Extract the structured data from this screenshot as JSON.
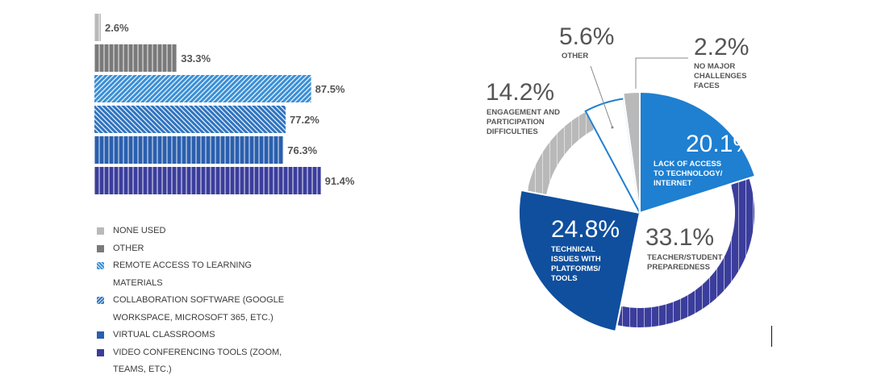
{
  "chart_data": [
    {
      "type": "bar",
      "orientation": "horizontal",
      "title": "",
      "xlabel": "",
      "ylabel": "",
      "xlim": [
        0,
        100
      ],
      "categories": [
        "NONE USED",
        "OTHER",
        "REMOTE ACCESS TO LEARNING MATERIALS",
        "COLLABORATION SOFTWARE (GOOGLE WORKSPACE,  MICROSOFT 365, ETC.)",
        "VIRTUAL CLASSROOMS",
        "VIDEO CONFERENCING TOOLS (ZOOM, TEAMS, ETC.)"
      ],
      "values": [
        2.6,
        33.3,
        87.5,
        77.2,
        76.3,
        91.4
      ],
      "value_labels": [
        "2.6%",
        "33.3%",
        "87.5%",
        "77.2%",
        "76.3%",
        "91.4%"
      ],
      "colors": [
        "#b9b9b9",
        "#7a7a7a",
        "#3a8fd6",
        "#2f74c0",
        "#2a5fae",
        "#3b3d9c"
      ],
      "patterns": [
        "vlines",
        "vlines",
        "diag-up",
        "diag-down",
        "vlines",
        "vlines"
      ],
      "legend_placement": "bottom-left"
    },
    {
      "type": "pie",
      "style": "donut",
      "slices": [
        {
          "label": "LACK OF ACCESS TO TECHNOLOGY/ INTERNET",
          "value": 20.1,
          "value_label": "20.1%",
          "color": "#1f7fd0",
          "ring": "outer"
        },
        {
          "label": "TEACHER/STUDENT PREPAREDNESS",
          "value": 33.1,
          "value_label": "33.1%",
          "color": "#3b3d9c",
          "ring": "inner"
        },
        {
          "label": "TECHNICAL ISSUES WITH PLATFORMS/ TOOLS",
          "value": 24.8,
          "value_label": "24.8%",
          "color": "#0f4f9e",
          "ring": "outer"
        },
        {
          "label": "ENGAGEMENT AND PARTICIPATION DIFFICULTIES",
          "value": 14.2,
          "value_label": "14.2%",
          "color": "#b9b9b9",
          "ring": "inner"
        },
        {
          "label": "OTHER",
          "value": 5.6,
          "value_label": "5.6%",
          "color": "#1f7fd0",
          "ring": "outline"
        },
        {
          "label": "NO MAJOR CHALLENGES FACES",
          "value": 2.2,
          "value_label": "2.2%",
          "color": "#b9b9b9",
          "ring": "outer"
        }
      ]
    }
  ]
}
